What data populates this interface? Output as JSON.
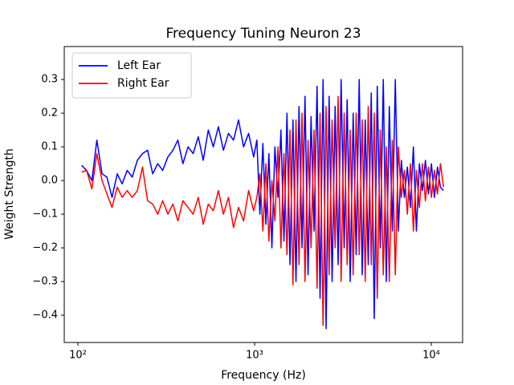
{
  "chart_data": {
    "type": "line",
    "title": "Frequency Tuning Neuron 23",
    "x_label": "Frequency (Hz)",
    "y_label": "Weight Strength",
    "x_scale": "log",
    "legend": "upper left",
    "grid": false,
    "xlim": [
      83.7,
      15040
    ],
    "ylim": [
      -0.481,
      0.398
    ],
    "xticks": [
      {
        "value": 100,
        "label": "10²"
      },
      {
        "value": 1000,
        "label": "10³"
      },
      {
        "value": 10000,
        "label": "10⁴"
      }
    ],
    "yticks": [
      {
        "value": -0.4,
        "label": "−0.4"
      },
      {
        "value": -0.3,
        "label": "−0.3"
      },
      {
        "value": -0.2,
        "label": "−0.2"
      },
      {
        "value": -0.1,
        "label": "−0.1"
      },
      {
        "value": 0,
        "label": "0.0"
      },
      0.1,
      0.2,
      0.3
    ],
    "x": [
      105,
      112,
      120,
      128,
      137,
      146,
      156,
      167,
      178,
      190,
      203,
      217,
      232,
      248,
      265,
      283,
      302,
      323,
      345,
      368,
      393,
      420,
      449,
      480,
      512,
      547,
      584,
      624,
      666,
      711,
      760,
      811,
      866,
      925,
      988,
      1030,
      1071,
      1114,
      1159,
      1205,
      1253,
      1303,
      1356,
      1410,
      1466,
      1525,
      1586,
      1649,
      1715,
      1784,
      1855,
      1929,
      2007,
      2087,
      2170,
      2257,
      2347,
      2441,
      2539,
      2641,
      2746,
      2856,
      2970,
      3089,
      3213,
      3341,
      3475,
      3614,
      3758,
      3909,
      4065,
      4228,
      4397,
      4573,
      4756,
      4946,
      5144,
      5350,
      5564,
      5786,
      6018,
      6258,
      6509,
      6769,
      7040,
      7321,
      7614,
      7919,
      8235,
      8565,
      8907,
      9263,
      9634,
      10019,
      10420,
      10837,
      11270,
      11721
    ],
    "series": [
      {
        "name": "Left Ear",
        "color": "#0000ff",
        "values": [
          0.045,
          0.03,
          0.0,
          0.12,
          0.02,
          0.01,
          -0.05,
          0.02,
          -0.01,
          0.03,
          0.01,
          0.06,
          0.08,
          0.09,
          0.02,
          0.05,
          0.03,
          0.07,
          0.09,
          0.12,
          0.05,
          0.1,
          0.08,
          0.13,
          0.06,
          0.15,
          0.1,
          0.16,
          0.09,
          0.14,
          0.12,
          0.18,
          0.1,
          0.14,
          0.07,
          0.12,
          -0.1,
          0.11,
          -0.13,
          0.08,
          -0.2,
          0.1,
          -0.05,
          0.15,
          -0.18,
          0.2,
          -0.25,
          0.18,
          -0.3,
          0.22,
          -0.2,
          0.25,
          -0.28,
          0.19,
          -0.15,
          0.28,
          -0.35,
          0.3,
          -0.44,
          0.25,
          -0.3,
          0.22,
          -0.25,
          0.3,
          -0.2,
          0.24,
          -0.3,
          0.2,
          -0.22,
          0.3,
          -0.28,
          0.18,
          -0.25,
          0.26,
          -0.41,
          0.28,
          -0.2,
          0.3,
          -0.3,
          0.22,
          -0.15,
          0.3,
          -0.15,
          0.06,
          -0.05,
          0.04,
          -0.08,
          0.1,
          -0.15,
          0.05,
          -0.03,
          0.06,
          -0.04,
          0.05,
          -0.05,
          0.04,
          -0.02,
          -0.03
        ]
      },
      {
        "name": "Right Ear",
        "color": "#ff0000",
        "values": [
          0.025,
          0.03,
          -0.025,
          0.08,
          0.0,
          -0.04,
          -0.08,
          -0.02,
          -0.05,
          -0.03,
          -0.05,
          -0.03,
          0.04,
          -0.06,
          -0.07,
          -0.1,
          -0.06,
          -0.1,
          -0.07,
          -0.12,
          -0.06,
          -0.08,
          -0.1,
          -0.05,
          -0.13,
          -0.07,
          -0.09,
          -0.03,
          -0.1,
          -0.05,
          -0.14,
          -0.08,
          -0.12,
          -0.03,
          -0.09,
          -0.05,
          0.02,
          -0.15,
          0.05,
          -0.18,
          0.0,
          -0.12,
          0.1,
          -0.2,
          0.08,
          -0.22,
          0.15,
          -0.31,
          0.18,
          -0.25,
          0.2,
          -0.3,
          0.12,
          -0.2,
          0.15,
          -0.32,
          0.2,
          -0.43,
          0.22,
          -0.28,
          0.18,
          -0.2,
          0.25,
          -0.3,
          0.2,
          -0.25,
          0.15,
          -0.28,
          0.2,
          -0.22,
          0.18,
          -0.3,
          0.22,
          -0.25,
          0.2,
          -0.35,
          0.15,
          -0.28,
          0.1,
          -0.3,
          0.12,
          -0.28,
          0.1,
          -0.05,
          0.03,
          -0.1,
          0.05,
          -0.15,
          0.03,
          -0.08,
          0.05,
          -0.06,
          0.04,
          -0.05,
          0.03,
          -0.04,
          0.05,
          -0.02
        ]
      }
    ]
  }
}
